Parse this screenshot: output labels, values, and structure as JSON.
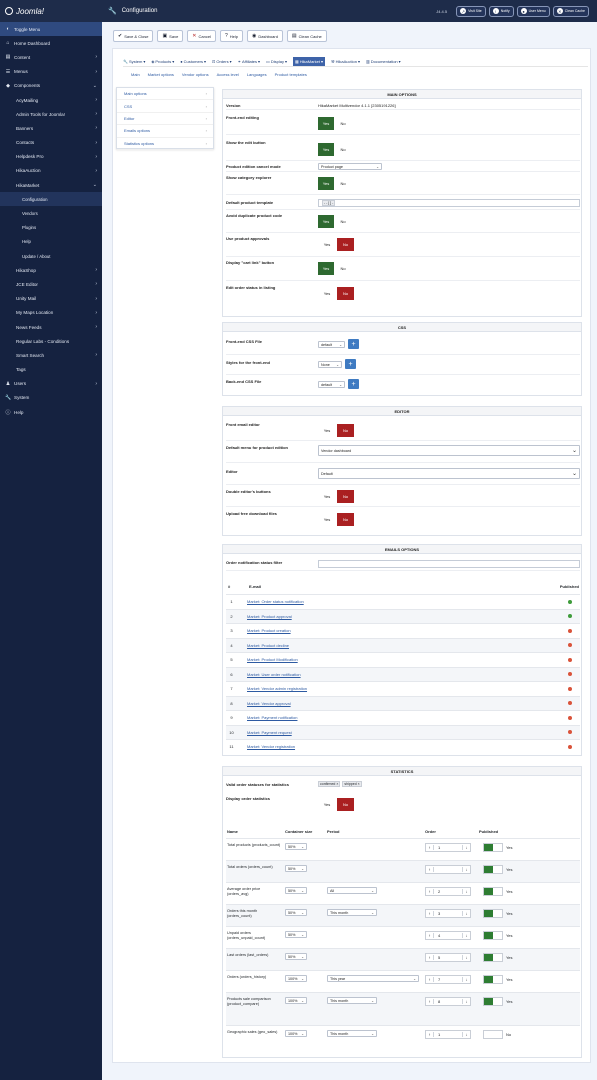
{
  "header": {
    "logo_text": "Joomla!",
    "page_title": "Configuration",
    "version": "J4.4.5",
    "buttons": [
      {
        "label": "Visit Site",
        "icon": "external-icon"
      },
      {
        "label": "Notify",
        "icon": "bell-icon"
      },
      {
        "label": "User Menu",
        "icon": "user-icon"
      },
      {
        "label": "Clean Cache",
        "icon": "trash-icon"
      }
    ]
  },
  "sidebar": {
    "toggle": "Toggle Menu",
    "items": [
      {
        "label": "Home Dashboard",
        "icon": "home-icon",
        "level": 0
      },
      {
        "label": "Content",
        "icon": "file-icon",
        "level": 0,
        "chevron": "›"
      },
      {
        "label": "Menus",
        "icon": "list-icon",
        "level": 0,
        "chevron": "›"
      },
      {
        "label": "Components",
        "icon": "cube-icon",
        "level": 0,
        "chevron": "⌄"
      },
      {
        "label": "AcyMailing",
        "level": 1,
        "chevron": "›"
      },
      {
        "label": "Admin Tools for Joomla!",
        "level": 1,
        "chevron": "›"
      },
      {
        "label": "Banners",
        "level": 1,
        "chevron": "›"
      },
      {
        "label": "Contacts",
        "level": 1,
        "chevron": "›"
      },
      {
        "label": "Helpdesk Pro",
        "level": 1,
        "chevron": "›"
      },
      {
        "label": "HikaAuction",
        "level": 1,
        "chevron": "›"
      },
      {
        "label": "HikaMarket",
        "level": 1,
        "chevron": "⌄"
      },
      {
        "label": "Configuration",
        "level": 2,
        "current": true
      },
      {
        "label": "Vendors",
        "level": 2
      },
      {
        "label": "Plugins",
        "level": 2
      },
      {
        "label": "Help",
        "level": 2
      },
      {
        "label": "Update / About",
        "level": 2
      },
      {
        "label": "HikaShop",
        "level": 1,
        "chevron": "›"
      },
      {
        "label": "JCE Editor",
        "level": 1,
        "chevron": "›"
      },
      {
        "label": "Unity Mail",
        "level": 1,
        "chevron": "›"
      },
      {
        "label": "My Maps Location",
        "level": 1,
        "chevron": "›"
      },
      {
        "label": "News Feeds",
        "level": 1,
        "chevron": "›"
      },
      {
        "label": "Regular Labs - Conditions",
        "level": 1
      },
      {
        "label": "Smart Search",
        "level": 1,
        "chevron": "›"
      },
      {
        "label": "Tags",
        "level": 1
      },
      {
        "label": "Users",
        "icon": "users-icon",
        "level": 0,
        "chevron": "›"
      },
      {
        "label": "System",
        "icon": "wrench-icon",
        "level": 0
      },
      {
        "label": "Help",
        "icon": "info-icon",
        "level": 0
      }
    ]
  },
  "toolbar": {
    "save_close": "Save & Close",
    "save": "Save",
    "cancel": "Cancel",
    "help": "Help",
    "dashboard": "Dashboard",
    "clean_cache": "Clean Cache"
  },
  "menubar": [
    {
      "label": "System",
      "icon": "wrench-icon"
    },
    {
      "label": "Products",
      "icon": "tag-icon"
    },
    {
      "label": "Customers",
      "icon": "user-icon"
    },
    {
      "label": "Orders",
      "icon": "cart-icon"
    },
    {
      "label": "Affiliates",
      "icon": "handshake-icon"
    },
    {
      "label": "Display",
      "icon": "monitor-icon"
    },
    {
      "label": "HikaMarket",
      "icon": "store-icon",
      "selected": true
    },
    {
      "label": "HikaAuction",
      "icon": "gavel-icon"
    },
    {
      "label": "Documentation",
      "icon": "book-icon"
    }
  ],
  "subnav": [
    "Main",
    "Market options",
    "Vendor options",
    "Access level",
    "Languages",
    "Product templates"
  ],
  "dropdown": [
    "Main options",
    "CSS",
    "Editor",
    "Emails options",
    "Statistics options"
  ],
  "main_options": {
    "title": "MAIN OPTIONS",
    "version_label": "Version",
    "version_value": "HikaMarket Multivendor 4.1.1 [2305191226]",
    "frontend_editing": "Front-end editing",
    "show_edit_button": "Show the edit button",
    "product_cancel_mode": "Product edition cancel mode",
    "product_cancel_value": "Product page",
    "show_category_explorer": "Show category explorer",
    "default_product_template": "Default product template",
    "default_product_template_value": "- - [ ] -",
    "avoid_duplicate": "Avoid duplicate product code",
    "use_product_approvals": "Use product approvals",
    "display_cart_link": "Display \"cart link\" button",
    "edit_order_status": "Edit order status in listing",
    "yes": "Yes",
    "no": "No"
  },
  "css_section": {
    "title": "CSS",
    "frontend_css": "Front-end CSS File",
    "frontend_css_value": "default",
    "styles_frontend": "Styles for the front-end",
    "styles_frontend_value": "None",
    "backend_css": "Back-end CSS File",
    "backend_css_value": "default"
  },
  "editor_section": {
    "title": "EDITOR",
    "front_email_editor": "Front email editor",
    "default_menu": "Default menu for product edition",
    "default_menu_value": "Vendor dashboard",
    "editor": "Editor",
    "editor_value": "Default",
    "double_editor": "Double editor's buttons",
    "upload_free": "Upload free download files"
  },
  "emails_section": {
    "title": "EMAILS OPTIONS",
    "filter_label": "Order notification status filter",
    "col_num": "#",
    "col_email": "E-mail",
    "col_published": "Published",
    "rows": [
      {
        "num": "1",
        "name": "Market: Order status notification",
        "published": true
      },
      {
        "num": "2",
        "name": "Market: Product approval",
        "published": true
      },
      {
        "num": "3",
        "name": "Market: Product creation",
        "published": false
      },
      {
        "num": "4",
        "name": "Market: Product decline",
        "published": false
      },
      {
        "num": "5",
        "name": "Market: Product Modification",
        "published": false
      },
      {
        "num": "6",
        "name": "Market: User order notification",
        "published": false
      },
      {
        "num": "7",
        "name": "Market: Vendor admin registration",
        "published": false
      },
      {
        "num": "8",
        "name": "Market: Vendor approval",
        "published": false
      },
      {
        "num": "9",
        "name": "Market: Payment notification",
        "published": false
      },
      {
        "num": "10",
        "name": "Market: Payment request",
        "published": false
      },
      {
        "num": "11",
        "name": "Market: Vendor registration",
        "published": false
      }
    ]
  },
  "statistics_section": {
    "title": "STATISTICS",
    "valid_statuses": "Valid order statuses for statistics",
    "status_tags": [
      "confirmed ×",
      "shipped ×"
    ],
    "display_order_stats": "Display order statistics",
    "col_name": "Name",
    "col_size": "Container size",
    "col_period": "Period",
    "col_order": "Order",
    "col_published": "Published",
    "rows": [
      {
        "name": "Total products (products_count)",
        "size": "50%",
        "period": "",
        "order": "1",
        "published": "Yes",
        "on": true
      },
      {
        "name": "Total orders (orders_count)",
        "size": "50%",
        "period": "",
        "order": "",
        "published": "Yes",
        "on": true
      },
      {
        "name": "Average order price (orders_avg)",
        "size": "50%",
        "period": "All",
        "order": "2",
        "published": "Yes",
        "on": true
      },
      {
        "name": "Orders this month (orders_count)",
        "size": "50%",
        "period": "This month",
        "order": "3",
        "published": "Yes",
        "on": true
      },
      {
        "name": "Unpaid orders (orders_unpaid_count)",
        "size": "50%",
        "period": "",
        "order": "4",
        "published": "Yes",
        "on": true
      },
      {
        "name": "Last orders (last_orders)",
        "size": "50%",
        "period": "",
        "order": "5",
        "published": "Yes",
        "on": true
      },
      {
        "name": "Orders (orders_history)",
        "size": "100%",
        "period": "This year",
        "order": "7",
        "published": "Yes",
        "on": true
      },
      {
        "name": "Products sale comparison (product_compare)",
        "size": "100%",
        "period": "This month",
        "order": "8",
        "published": "Yes",
        "on": true
      },
      {
        "name": "Geographic sales (geo_sales)",
        "size": "100%",
        "period": "This month",
        "order": "1",
        "published": "No",
        "on": false
      }
    ]
  }
}
